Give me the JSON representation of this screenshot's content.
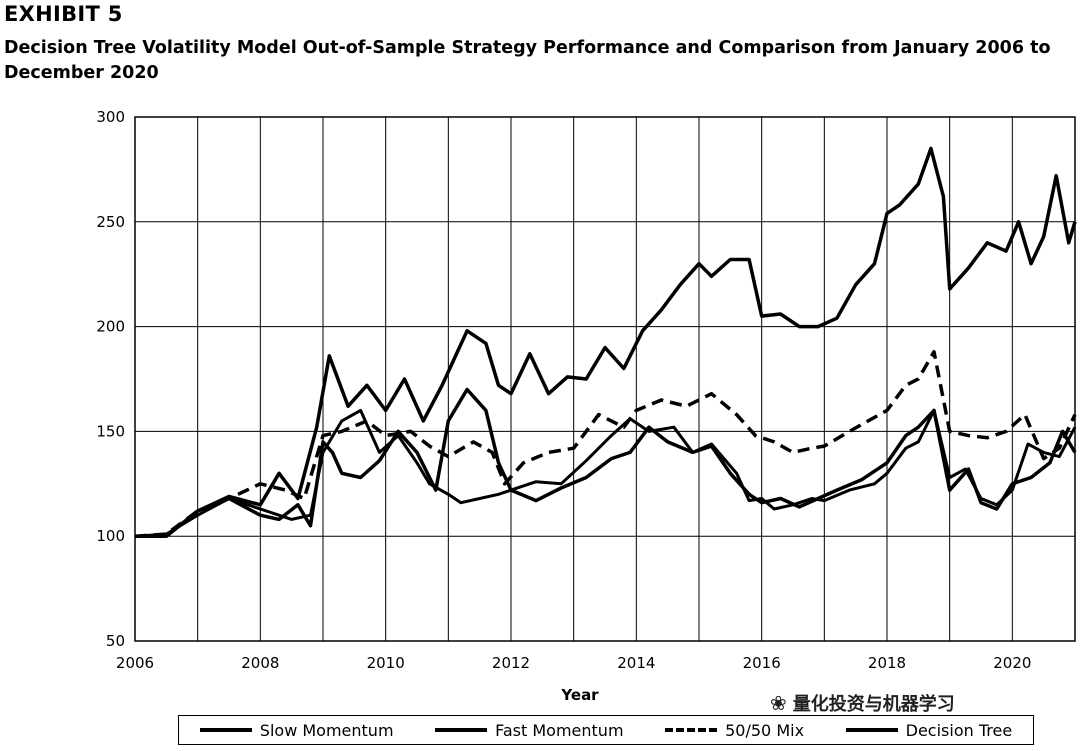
{
  "header": {
    "exhibit": "EXHIBIT 5",
    "subtitle": "Decision Tree Volatility Model Out-of-Sample Strategy Performance and Comparison from January 2006 to December 2020"
  },
  "watermark": {
    "text": "量化投资与机器学习",
    "icon": "wechat-icon"
  },
  "chart_data": {
    "type": "line",
    "title": "",
    "xlabel": "Year",
    "ylabel": "",
    "xlim": [
      2006,
      2021
    ],
    "ylim": [
      50,
      300
    ],
    "x_ticks": [
      2006,
      2008,
      2010,
      2012,
      2014,
      2016,
      2018,
      2020
    ],
    "y_ticks": [
      50,
      100,
      150,
      200,
      250,
      300
    ],
    "grid": true,
    "legend_position": "bottom",
    "series": [
      {
        "name": "Slow Momentum",
        "style": "solid-thin",
        "x": [
          2006.0,
          2006.5,
          2007.0,
          2007.5,
          2008.0,
          2008.5,
          2008.8,
          2009.0,
          2009.3,
          2009.6,
          2009.9,
          2010.2,
          2010.5,
          2010.7,
          2011.0,
          2011.2,
          2011.5,
          2011.8,
          2012.0,
          2012.4,
          2012.8,
          2013.2,
          2013.6,
          2013.9,
          2014.2,
          2014.6,
          2014.9,
          2015.2,
          2015.6,
          2015.8,
          2016.0,
          2016.2,
          2016.5,
          2016.8,
          2017.0,
          2017.4,
          2017.8,
          2018.0,
          2018.3,
          2018.5,
          2018.75,
          2019.0,
          2019.25,
          2019.5,
          2019.75,
          2020.0,
          2020.25,
          2020.5,
          2020.75,
          2021.0
        ],
        "y": [
          100,
          101,
          110,
          118,
          113,
          108,
          110,
          140,
          155,
          160,
          140,
          148,
          135,
          125,
          120,
          116,
          118,
          120,
          122,
          126,
          125,
          136,
          148,
          156,
          150,
          152,
          140,
          144,
          130,
          117,
          118,
          113,
          115,
          118,
          117,
          122,
          125,
          130,
          142,
          145,
          160,
          128,
          132,
          118,
          115,
          122,
          144,
          140,
          138,
          152
        ]
      },
      {
        "name": "Fast Momentum",
        "style": "solid",
        "x": [
          2006.0,
          2006.5,
          2007.0,
          2007.5,
          2008.0,
          2008.3,
          2008.6,
          2008.8,
          2009.0,
          2009.15,
          2009.3,
          2009.6,
          2009.9,
          2010.2,
          2010.5,
          2010.8,
          2011.0,
          2011.3,
          2011.6,
          2011.8,
          2012.0,
          2012.4,
          2012.8,
          2013.2,
          2013.6,
          2013.9,
          2014.2,
          2014.5,
          2014.9,
          2015.2,
          2015.5,
          2015.8,
          2016.0,
          2016.3,
          2016.6,
          2016.9,
          2017.2,
          2017.6,
          2018.0,
          2018.3,
          2018.5,
          2018.75,
          2019.0,
          2019.3,
          2019.5,
          2019.75,
          2020.0,
          2020.3,
          2020.6,
          2020.8,
          2021.0
        ],
        "y": [
          100,
          100,
          112,
          118,
          110,
          108,
          115,
          105,
          145,
          140,
          130,
          128,
          136,
          150,
          140,
          122,
          155,
          170,
          160,
          135,
          122,
          117,
          123,
          128,
          137,
          140,
          152,
          145,
          140,
          143,
          130,
          120,
          116,
          118,
          114,
          118,
          122,
          127,
          135,
          148,
          152,
          160,
          122,
          132,
          116,
          113,
          125,
          128,
          135,
          150,
          140
        ]
      },
      {
        "name": "50/50 Mix",
        "style": "dashed",
        "x": [
          2006.0,
          2006.5,
          2007.0,
          2007.5,
          2008.0,
          2008.4,
          2008.7,
          2009.0,
          2009.3,
          2009.7,
          2010.0,
          2010.4,
          2010.7,
          2011.0,
          2011.4,
          2011.7,
          2011.9,
          2012.2,
          2012.6,
          2013.0,
          2013.4,
          2013.8,
          2014.0,
          2014.4,
          2014.8,
          2015.2,
          2015.6,
          2015.9,
          2016.2,
          2016.5,
          2016.8,
          2017.0,
          2017.4,
          2017.7,
          2018.0,
          2018.3,
          2018.5,
          2018.75,
          2019.0,
          2019.3,
          2019.6,
          2019.9,
          2020.2,
          2020.5,
          2020.75,
          2021.0
        ],
        "y": [
          100,
          101,
          112,
          118,
          125,
          122,
          118,
          148,
          150,
          155,
          148,
          150,
          143,
          138,
          145,
          140,
          125,
          135,
          140,
          142,
          158,
          152,
          160,
          165,
          162,
          168,
          158,
          148,
          145,
          140,
          142,
          143,
          150,
          155,
          160,
          172,
          175,
          188,
          150,
          148,
          147,
          150,
          158,
          137,
          142,
          158
        ]
      },
      {
        "name": "Decision Tree",
        "style": "solid",
        "x": [
          2006.0,
          2006.5,
          2007.0,
          2007.5,
          2008.0,
          2008.3,
          2008.6,
          2008.9,
          2009.1,
          2009.4,
          2009.7,
          2010.0,
          2010.3,
          2010.6,
          2010.9,
          2011.1,
          2011.3,
          2011.6,
          2011.8,
          2012.0,
          2012.3,
          2012.6,
          2012.9,
          2013.2,
          2013.5,
          2013.8,
          2014.1,
          2014.4,
          2014.7,
          2015.0,
          2015.2,
          2015.5,
          2015.8,
          2016.0,
          2016.3,
          2016.6,
          2016.9,
          2017.2,
          2017.5,
          2017.8,
          2018.0,
          2018.2,
          2018.5,
          2018.7,
          2018.9,
          2019.0,
          2019.3,
          2019.6,
          2019.9,
          2020.1,
          2020.3,
          2020.5,
          2020.7,
          2020.9,
          2021.0
        ],
        "y": [
          100,
          100,
          112,
          119,
          115,
          130,
          118,
          152,
          186,
          162,
          172,
          160,
          175,
          155,
          172,
          185,
          198,
          192,
          172,
          168,
          187,
          168,
          176,
          175,
          190,
          180,
          198,
          208,
          220,
          230,
          224,
          232,
          232,
          205,
          206,
          200,
          200,
          204,
          220,
          230,
          254,
          258,
          268,
          285,
          262,
          218,
          228,
          240,
          236,
          250,
          230,
          243,
          272,
          240,
          250
        ]
      }
    ]
  },
  "legend": {
    "items": [
      {
        "label": "Slow Momentum",
        "style": "solid"
      },
      {
        "label": "Fast Momentum",
        "style": "solid"
      },
      {
        "label": "50/50 Mix",
        "style": "dashed"
      },
      {
        "label": "Decision Tree",
        "style": "solid"
      }
    ]
  }
}
